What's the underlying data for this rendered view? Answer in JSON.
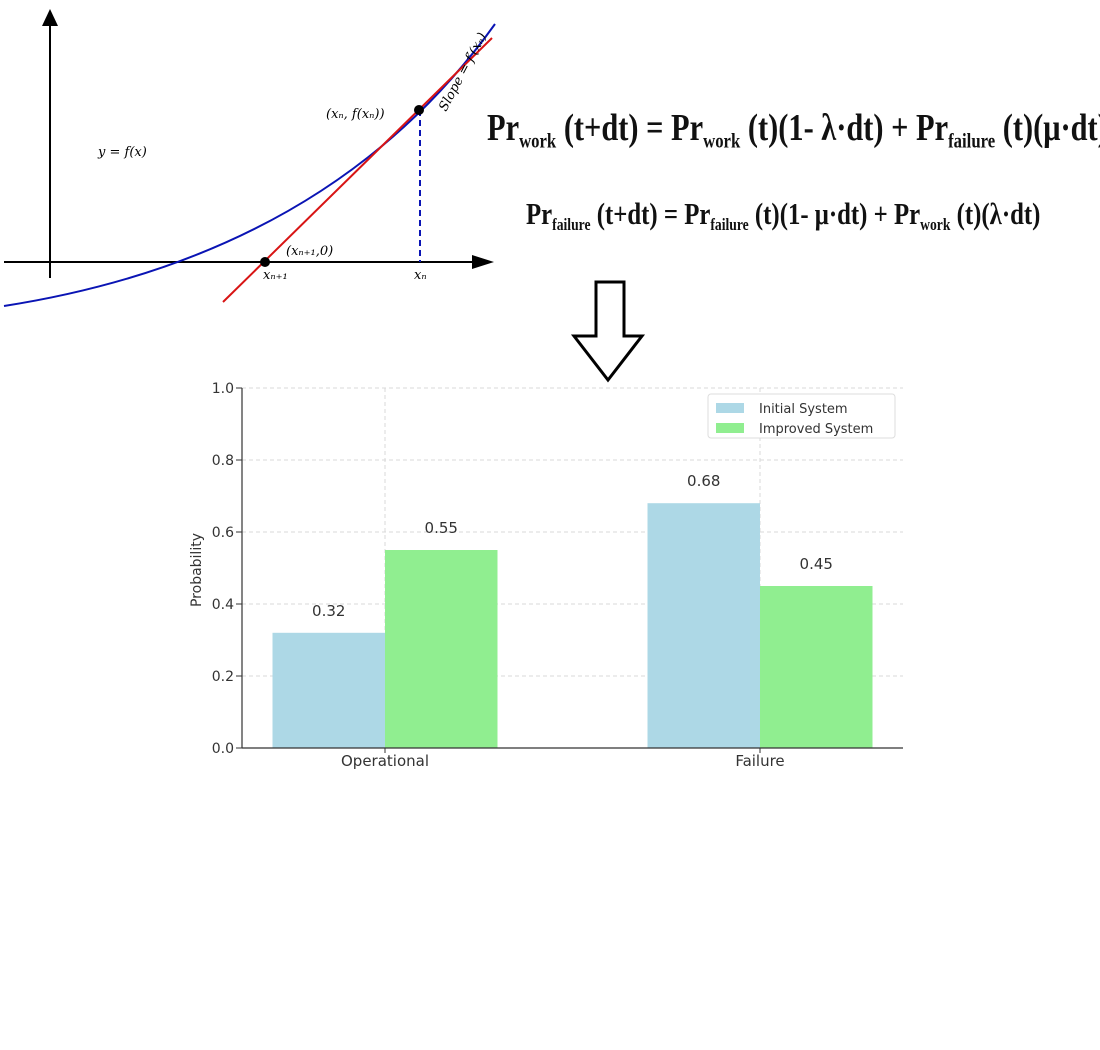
{
  "newton_diagram": {
    "function_label": "y = f(x)",
    "tangent_point_label": "(xₙ, f(xₙ))",
    "slope_label": "Slope = f′(xₙ)",
    "root_point_label": "(xₙ₊₁,0)",
    "x_next_label": "xₙ₊₁",
    "x_n_label": "xₙ",
    "colors": {
      "curve": "#0a14b4",
      "tangent": "#d81414",
      "axes": "#000000"
    }
  },
  "equations": {
    "eq1": {
      "t1": "Pr",
      "s1": "work",
      "t2": " (t+dt) = Pr",
      "s2": "work",
      "t3": " (t)(1- λ·dt) + Pr",
      "s3": "failure",
      "t4": " (t)(μ·dt)"
    },
    "eq2": {
      "t1": "Pr",
      "s1": "failure",
      "t2": " (t+dt) = Pr",
      "s2": "failure",
      "t3": " (t)(1- μ·dt) + Pr",
      "s3": "work",
      "t4": " (t)(λ·dt)"
    }
  },
  "chart_data": {
    "type": "bar",
    "categories": [
      "Operational",
      "Failure"
    ],
    "series": [
      {
        "name": "Initial System",
        "values": [
          0.32,
          0.68
        ],
        "labels": [
          "0.32",
          "0.68"
        ],
        "color": "#add8e6"
      },
      {
        "name": "Improved System",
        "values": [
          0.55,
          0.45
        ],
        "labels": [
          "0.55",
          "0.45"
        ],
        "color": "#90ee90"
      }
    ],
    "title": "",
    "xlabel": "",
    "ylabel": "Probability",
    "ylim": [
      0,
      1.0
    ],
    "yticks": [
      "0.0",
      "0.2",
      "0.4",
      "0.6",
      "0.8",
      "1.0"
    ],
    "grid": true,
    "legend_position": "top-right"
  }
}
